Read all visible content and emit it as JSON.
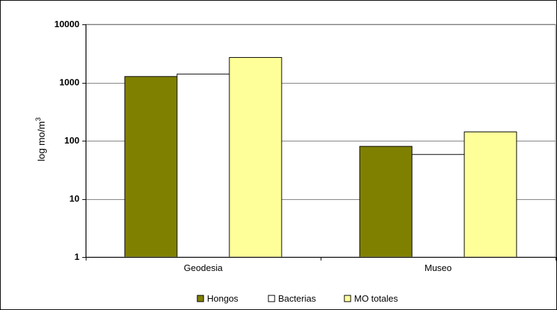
{
  "chart_data": {
    "type": "bar",
    "title": "",
    "xlabel": "",
    "ylabel": "log mo/m",
    "ylabel_superscript": "3",
    "yscale": "log",
    "ylim": [
      1,
      10000
    ],
    "ytick_values": [
      1,
      10,
      100,
      1000,
      10000
    ],
    "yticks": [
      "1",
      "10",
      "100",
      "1000",
      "10000"
    ],
    "grid": true,
    "legend_position": "bottom",
    "categories": [
      "Geodesia",
      "Museo"
    ],
    "series": [
      {
        "name": "Hongos",
        "color": "#808000",
        "values": [
          1270,
          80
        ]
      },
      {
        "name": "Bacterias",
        "color": "#ffffff",
        "values": [
          1400,
          58
        ]
      },
      {
        "name": "MO totales",
        "color": "#ffff99",
        "values": [
          2700,
          142
        ]
      }
    ]
  }
}
